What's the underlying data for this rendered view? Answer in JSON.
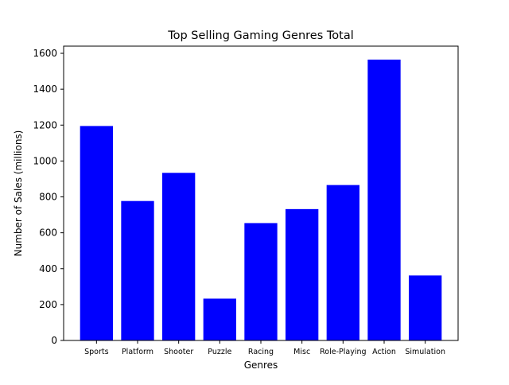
{
  "chart_data": {
    "type": "bar",
    "title": "Top Selling Gaming Genres Total",
    "xlabel": "Genres",
    "ylabel": "Number of Sales (millions)",
    "categories": [
      "Sports",
      "Platform",
      "Shooter",
      "Puzzle",
      "Racing",
      "Misc",
      "Role-Playing",
      "Action",
      "Simulation"
    ],
    "values": [
      1195,
      777,
      934,
      233,
      654,
      732,
      866,
      1565,
      362
    ],
    "ylim": [
      0,
      1640
    ],
    "yticks": [
      0,
      200,
      400,
      600,
      800,
      1000,
      1200,
      1400,
      1600
    ],
    "bar_color": "#0000ff",
    "grid": false,
    "legend": false
  }
}
